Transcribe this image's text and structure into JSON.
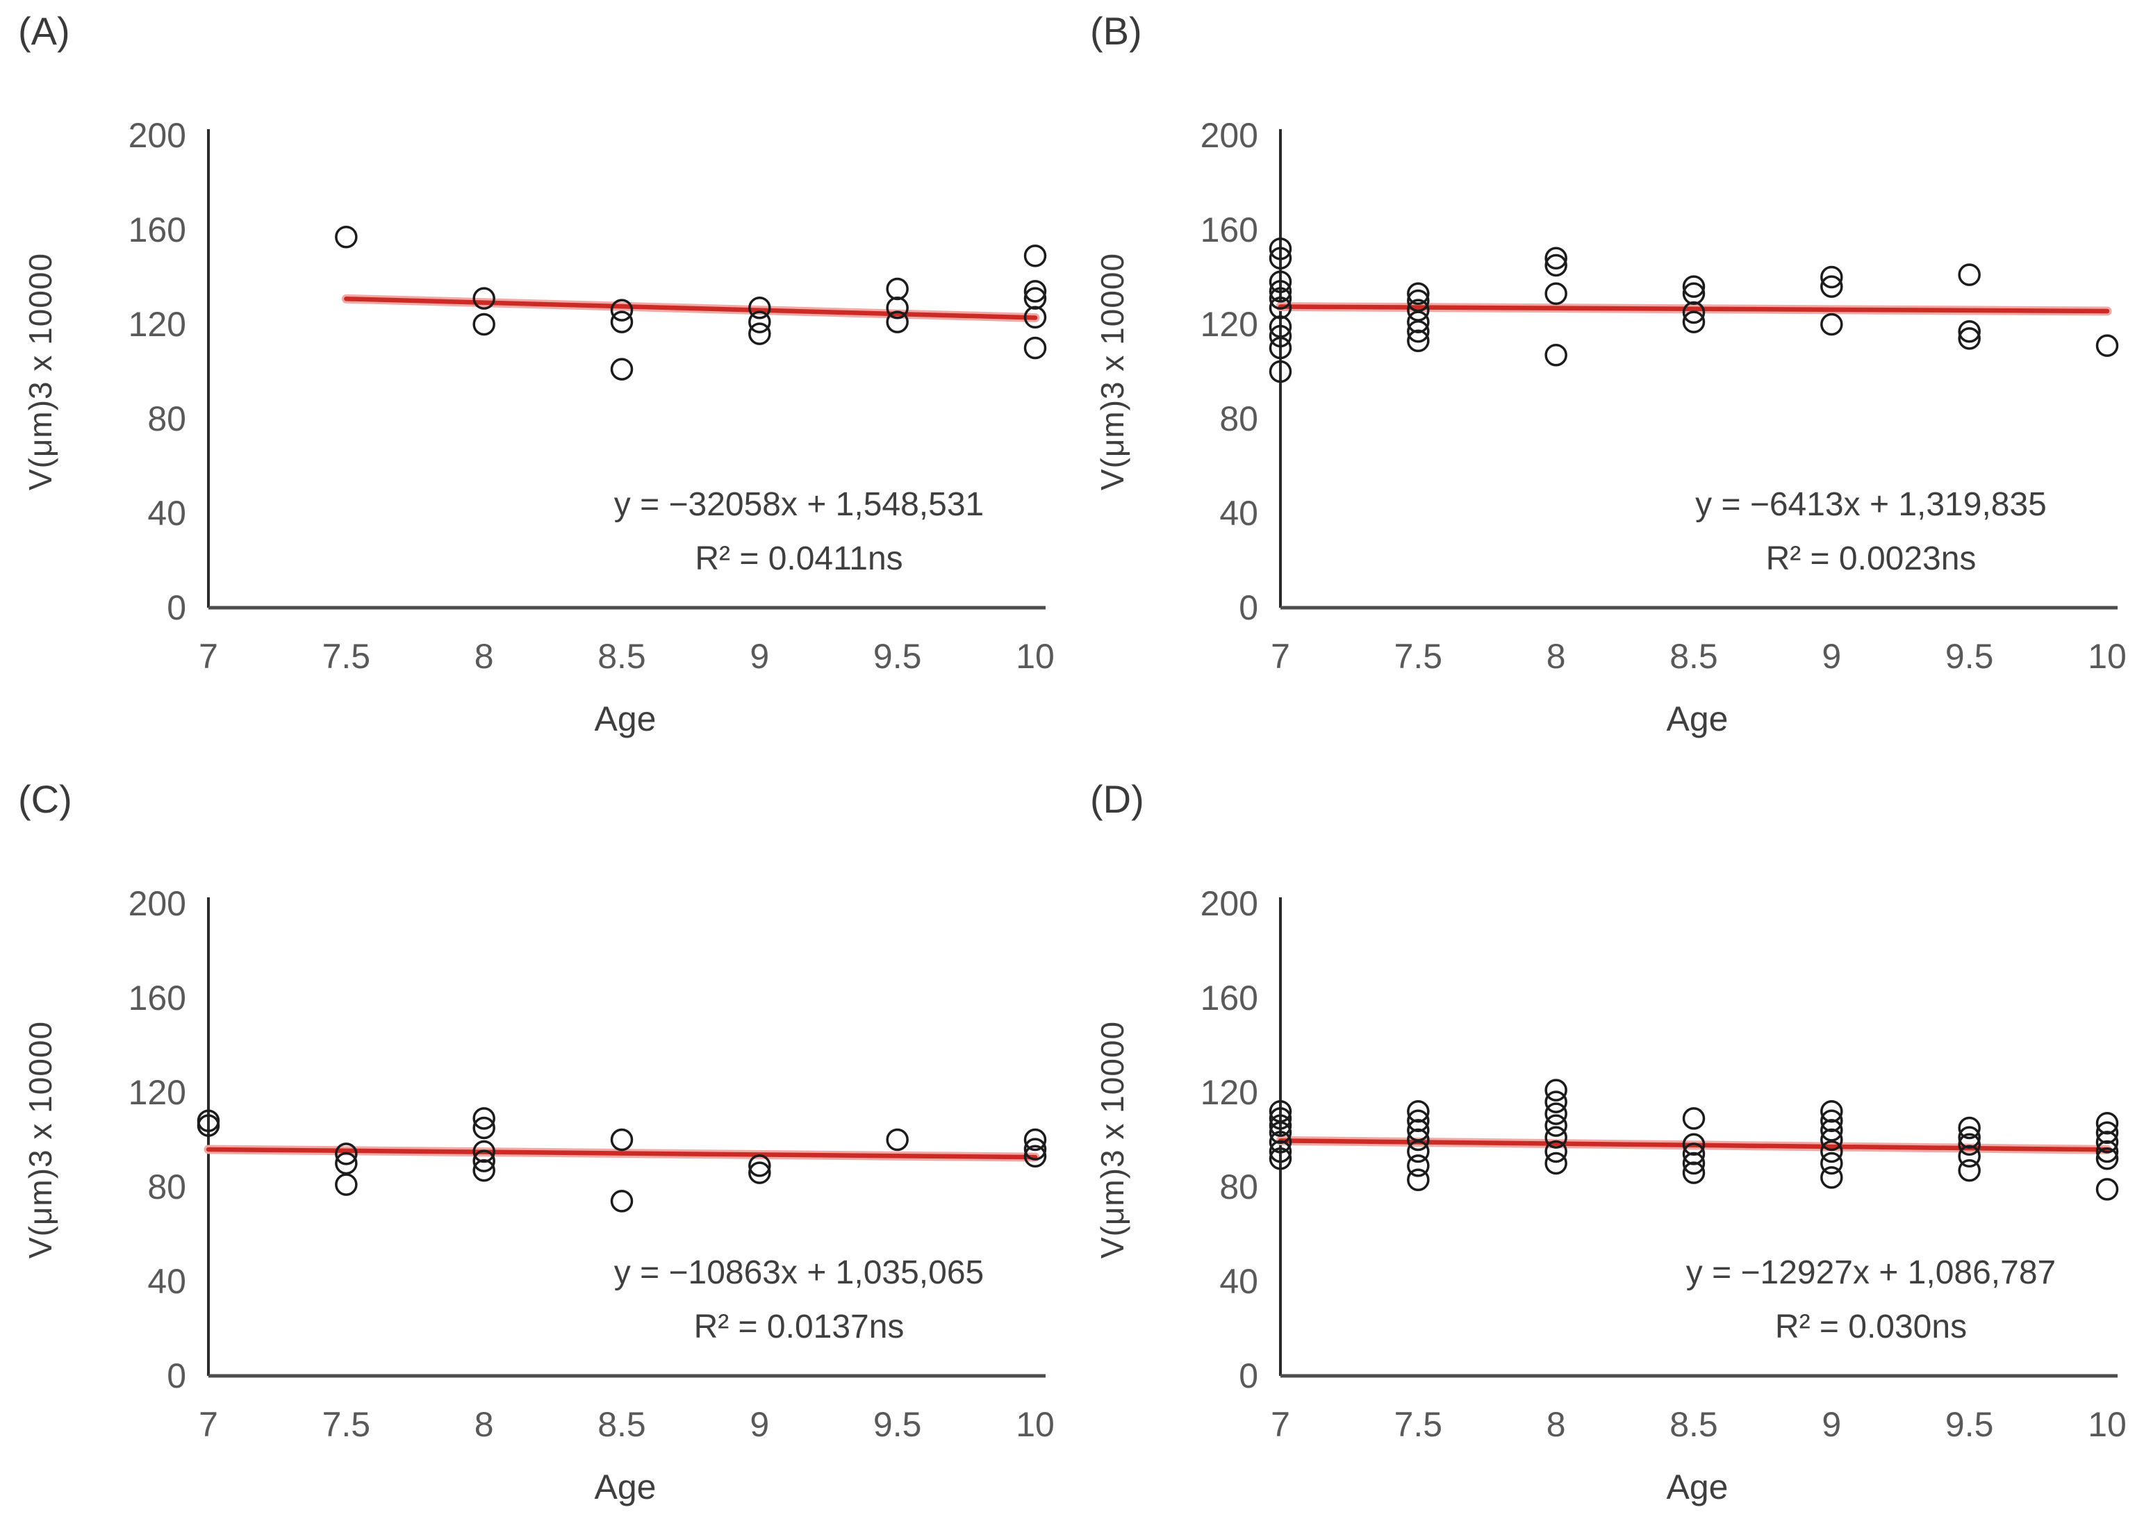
{
  "colors": {
    "background": "#ffffff",
    "trend_line": "#cb2b24",
    "trend_glow": "#f2a9a5",
    "marker_outline": "#1c1c1c",
    "y_axis": "#2b2b2b",
    "x_axis": "#4d4d4d",
    "tick_text": "#595959",
    "label_text": "#3f3f3f"
  },
  "chart_data": [
    {
      "panel_label": "(A)",
      "type": "scatter",
      "xlabel": "Age",
      "ylabel": "V(μm)3 x 10000",
      "xlim": [
        7,
        10
      ],
      "ylim": [
        0,
        200
      ],
      "x_ticks": [
        "7",
        "7.5",
        "8",
        "8.5",
        "9",
        "9.5",
        "10"
      ],
      "y_ticks": [
        "0",
        "40",
        "80",
        "120",
        "160",
        "200"
      ],
      "equation": "y = −32058x + 1,548,531",
      "r_squared": "R² = 0.0411ns",
      "points": [
        [
          7.5,
          157
        ],
        [
          8,
          131
        ],
        [
          8,
          120
        ],
        [
          8.5,
          126
        ],
        [
          8.5,
          121
        ],
        [
          8.5,
          101
        ],
        [
          9,
          127
        ],
        [
          9,
          121
        ],
        [
          9,
          116
        ],
        [
          9.5,
          135
        ],
        [
          9.5,
          127
        ],
        [
          9.5,
          121
        ],
        [
          10,
          149
        ],
        [
          10,
          134
        ],
        [
          10,
          131
        ],
        [
          10,
          123
        ],
        [
          10,
          110
        ]
      ],
      "trend": {
        "x1": 7.5,
        "y1": 130.8,
        "x2": 10,
        "y2": 122.8
      },
      "grid": "off",
      "legend": "none",
      "marker": "open-circle"
    },
    {
      "panel_label": "(B)",
      "type": "scatter",
      "xlabel": "Age",
      "ylabel": "V(μm)3 x 10000",
      "xlim": [
        7,
        10
      ],
      "ylim": [
        0,
        200
      ],
      "x_ticks": [
        "7",
        "7.5",
        "8",
        "8.5",
        "9",
        "9.5",
        "10"
      ],
      "y_ticks": [
        "0",
        "40",
        "80",
        "120",
        "160",
        "200"
      ],
      "equation": "y = −6413x + 1,319,835",
      "r_squared": "R² = 0.0023ns",
      "points": [
        [
          7,
          152
        ],
        [
          7,
          148
        ],
        [
          7,
          138
        ],
        [
          7,
          134
        ],
        [
          7,
          131
        ],
        [
          7,
          127
        ],
        [
          7,
          119
        ],
        [
          7,
          115
        ],
        [
          7,
          110
        ],
        [
          7,
          100
        ],
        [
          7.5,
          133
        ],
        [
          7.5,
          130
        ],
        [
          7.5,
          126
        ],
        [
          7.5,
          121
        ],
        [
          7.5,
          117
        ],
        [
          7.5,
          113
        ],
        [
          8,
          148
        ],
        [
          8,
          145
        ],
        [
          8,
          133
        ],
        [
          8,
          107
        ],
        [
          8.5,
          136
        ],
        [
          8.5,
          133
        ],
        [
          8.5,
          125
        ],
        [
          8.5,
          121
        ],
        [
          9,
          140
        ],
        [
          9,
          136
        ],
        [
          9,
          120
        ],
        [
          9.5,
          141
        ],
        [
          9.5,
          117
        ],
        [
          9.5,
          114
        ],
        [
          10,
          111
        ]
      ],
      "trend": {
        "x1": 7,
        "y1": 127.5,
        "x2": 10,
        "y2": 125.6
      },
      "grid": "off",
      "legend": "none",
      "marker": "open-circle"
    },
    {
      "panel_label": "(C)",
      "type": "scatter",
      "xlabel": "Age",
      "ylabel": "V(μm)3 x 10000",
      "xlim": [
        7,
        10
      ],
      "ylim": [
        0,
        200
      ],
      "x_ticks": [
        "7",
        "7.5",
        "8",
        "8.5",
        "9",
        "9.5",
        "10"
      ],
      "y_ticks": [
        "0",
        "40",
        "80",
        "120",
        "160",
        "200"
      ],
      "equation": "y = −10863x + 1,035,065",
      "r_squared": "R² = 0.0137ns",
      "points": [
        [
          7,
          108
        ],
        [
          7,
          106
        ],
        [
          7.5,
          94
        ],
        [
          7.5,
          90
        ],
        [
          7.5,
          81
        ],
        [
          8,
          109
        ],
        [
          8,
          105
        ],
        [
          8,
          95
        ],
        [
          8,
          91
        ],
        [
          8,
          87
        ],
        [
          8.5,
          100
        ],
        [
          8.5,
          74
        ],
        [
          9,
          89
        ],
        [
          9,
          86
        ],
        [
          9.5,
          100
        ],
        [
          10,
          100
        ],
        [
          10,
          96
        ],
        [
          10,
          93
        ]
      ],
      "trend": {
        "x1": 7,
        "y1": 95.9,
        "x2": 10,
        "y2": 92.6
      },
      "grid": "off",
      "legend": "none",
      "marker": "open-circle"
    },
    {
      "panel_label": "(D)",
      "type": "scatter",
      "xlabel": "Age",
      "ylabel": "V(μm)3 x 10000",
      "xlim": [
        7,
        10
      ],
      "ylim": [
        0,
        200
      ],
      "x_ticks": [
        "7",
        "7.5",
        "8",
        "8.5",
        "9",
        "9.5",
        "10"
      ],
      "y_ticks": [
        "0",
        "40",
        "80",
        "120",
        "160",
        "200"
      ],
      "equation": "y = −12927x + 1,086,787",
      "r_squared": "R² = 0.030ns",
      "points": [
        [
          7,
          112
        ],
        [
          7,
          109
        ],
        [
          7,
          106
        ],
        [
          7,
          103
        ],
        [
          7,
          99
        ],
        [
          7,
          95
        ],
        [
          7,
          92
        ],
        [
          7.5,
          112
        ],
        [
          7.5,
          108
        ],
        [
          7.5,
          104
        ],
        [
          7.5,
          100
        ],
        [
          7.5,
          95
        ],
        [
          7.5,
          89
        ],
        [
          7.5,
          83
        ],
        [
          8,
          121
        ],
        [
          8,
          116
        ],
        [
          8,
          111
        ],
        [
          8,
          106
        ],
        [
          8,
          101
        ],
        [
          8,
          95
        ],
        [
          8,
          90
        ],
        [
          8.5,
          109
        ],
        [
          8.5,
          98
        ],
        [
          8.5,
          94
        ],
        [
          8.5,
          90
        ],
        [
          8.5,
          86
        ],
        [
          9,
          112
        ],
        [
          9,
          108
        ],
        [
          9,
          104
        ],
        [
          9,
          100
        ],
        [
          9,
          95
        ],
        [
          9,
          90
        ],
        [
          9,
          84
        ],
        [
          9.5,
          105
        ],
        [
          9.5,
          101
        ],
        [
          9.5,
          98
        ],
        [
          9.5,
          93
        ],
        [
          9.5,
          87
        ],
        [
          10,
          107
        ],
        [
          10,
          103
        ],
        [
          10,
          99
        ],
        [
          10,
          95
        ],
        [
          10,
          92
        ],
        [
          10,
          79
        ]
      ],
      "trend": {
        "x1": 7,
        "y1": 99.6,
        "x2": 10,
        "y2": 95.8
      },
      "grid": "off",
      "legend": "none",
      "marker": "open-circle"
    }
  ]
}
